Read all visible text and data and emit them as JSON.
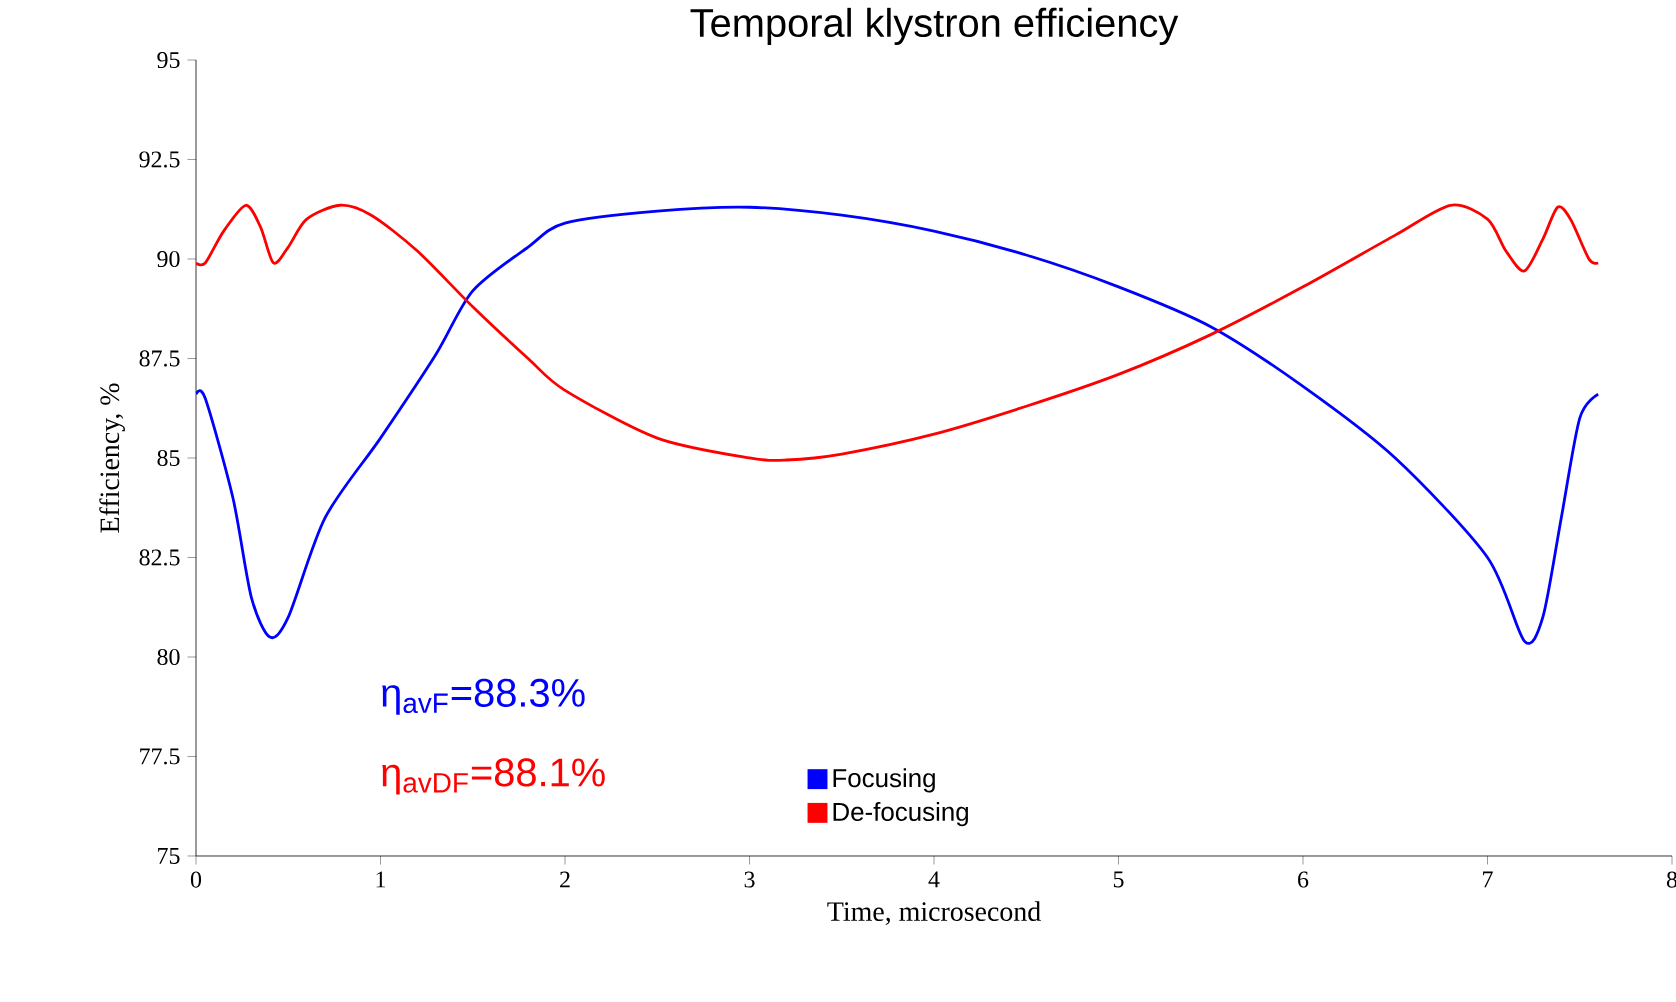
{
  "chart_data": {
    "type": "line",
    "title": "Temporal klystron efficiency",
    "xlabel": "Time, microsecond",
    "ylabel": "Efficiency, %",
    "xlim": [
      0,
      8
    ],
    "xticks": [
      0,
      1,
      2,
      3,
      4,
      5,
      6,
      7,
      8
    ],
    "ylim": [
      75,
      95
    ],
    "yticks": [
      75,
      77.5,
      80,
      82.5,
      85,
      87.5,
      90,
      92.5,
      95
    ],
    "legend": "bottom",
    "grid": false,
    "marker": "none",
    "line_style": "solid",
    "annotations": [
      "η$_{avF}$=88.3%",
      "η$_{avDF}$=88.1%"
    ],
    "series": [
      {
        "name": "Focusing",
        "color": "#0000ff",
        "x": [
          0,
          0.05,
          0.2,
          0.3,
          0.4,
          0.5,
          0.7,
          1.0,
          1.3,
          1.5,
          1.8,
          2.0,
          2.5,
          3.0,
          3.5,
          4.0,
          4.5,
          5.0,
          5.5,
          6.0,
          6.5,
          7.0,
          7.2,
          7.3,
          7.4,
          7.5,
          7.6
        ],
        "values": [
          86.6,
          86.5,
          84,
          81.5,
          80.5,
          81,
          83.5,
          85.5,
          87.6,
          89.2,
          90.3,
          90.9,
          91.2,
          91.3,
          91.1,
          90.7,
          90.1,
          89.3,
          88.3,
          86.8,
          85,
          82.5,
          80.4,
          81,
          83.5,
          86,
          86.6
        ]
      },
      {
        "name": "De-focusing",
        "color": "#ff0000",
        "x": [
          0,
          0.05,
          0.15,
          0.27,
          0.35,
          0.42,
          0.5,
          0.6,
          0.78,
          0.95,
          1.2,
          1.5,
          1.8,
          2.0,
          2.5,
          3.0,
          3.2,
          3.5,
          4.0,
          4.5,
          5.0,
          5.5,
          6.0,
          6.5,
          6.8,
          7.0,
          7.1,
          7.2,
          7.3,
          7.38,
          7.45,
          7.55,
          7.6
        ],
        "values": [
          89.9,
          89.9,
          90.7,
          91.35,
          90.8,
          89.9,
          90.3,
          91,
          91.35,
          91.1,
          90.2,
          88.8,
          87.5,
          86.7,
          85.5,
          85.0,
          84.95,
          85.1,
          85.6,
          86.3,
          87.1,
          88.1,
          89.3,
          90.6,
          91.35,
          91.0,
          90.2,
          89.7,
          90.5,
          91.3,
          91.0,
          90.0,
          89.9
        ]
      }
    ]
  }
}
